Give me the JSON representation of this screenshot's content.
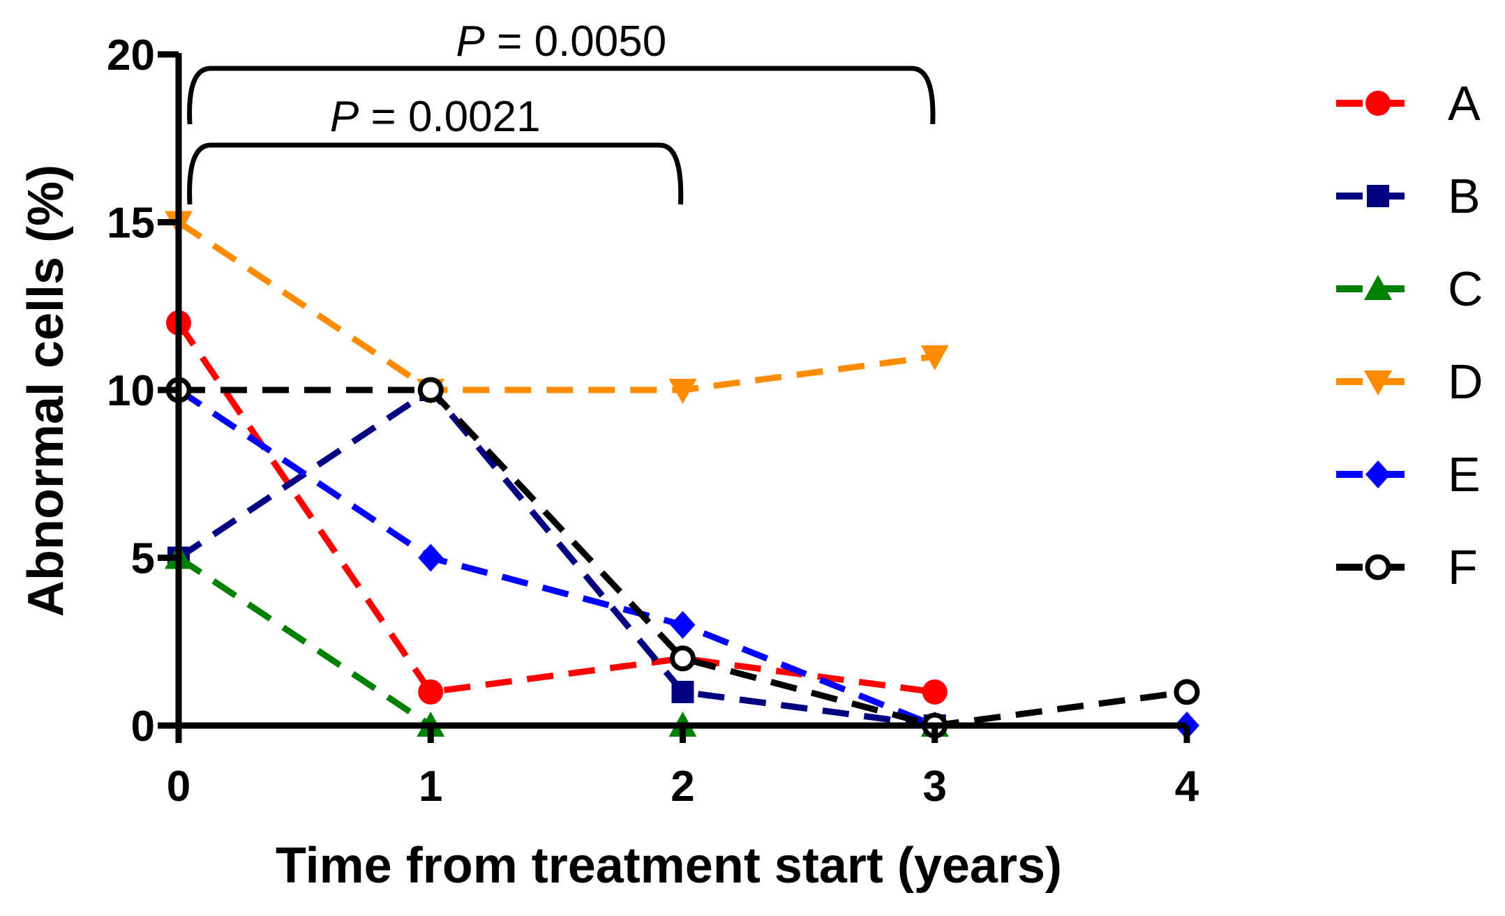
{
  "chart_data": {
    "type": "line",
    "title": "",
    "xlabel": "Time from treatment start (years)",
    "ylabel": "Abnormal cells (%)",
    "xlim": [
      0,
      4
    ],
    "ylim": [
      0,
      20
    ],
    "xticks": [
      0,
      1,
      2,
      3,
      4
    ],
    "yticks": [
      0,
      5,
      10,
      15,
      20
    ],
    "grid": false,
    "legend_position": "right",
    "series": [
      {
        "name": "A",
        "color": "#ff0000",
        "marker": "circle",
        "x": [
          0,
          1,
          2,
          3
        ],
        "values": [
          12,
          1,
          2,
          1
        ]
      },
      {
        "name": "B",
        "color": "#000080",
        "marker": "square",
        "x": [
          0,
          1,
          2,
          3
        ],
        "values": [
          5,
          10,
          1,
          0
        ]
      },
      {
        "name": "C",
        "color": "#008000",
        "marker": "triangle-up",
        "x": [
          0,
          1,
          2,
          3
        ],
        "values": [
          5,
          0,
          0,
          0
        ]
      },
      {
        "name": "D",
        "color": "#ff8c00",
        "marker": "triangle-down",
        "x": [
          0,
          1,
          2,
          3
        ],
        "values": [
          15,
          10,
          10,
          11
        ]
      },
      {
        "name": "E",
        "color": "#0000ff",
        "marker": "diamond",
        "x": [
          0,
          1,
          2,
          3,
          4
        ],
        "values": [
          10,
          5,
          3,
          0,
          0
        ]
      },
      {
        "name": "F",
        "color": "#000000",
        "marker": "open-circle",
        "x": [
          0,
          1,
          2,
          3,
          4
        ],
        "values": [
          10,
          10,
          2,
          0,
          1
        ]
      }
    ],
    "annotations": [
      {
        "prefix": "P",
        "text": " = 0.0050",
        "from_x": 0,
        "to_x": 3
      },
      {
        "prefix": "P",
        "text": " = 0.0021",
        "from_x": 0,
        "to_x": 2
      }
    ]
  }
}
